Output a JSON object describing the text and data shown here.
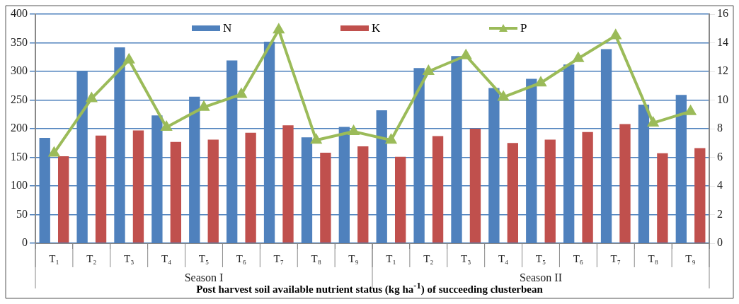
{
  "chart_data": {
    "type": "bar",
    "xlabel": "Post harvest soil available nutrient status (kg ha$^{-1}$) of succeeding clusterbean",
    "categories": [
      "T₁",
      "T₂",
      "T₃",
      "T₄",
      "T₅",
      "T₆",
      "T₇",
      "T₈",
      "T₉",
      "T₁",
      "T₂",
      "T₃",
      "T₄",
      "T₅",
      "T₆",
      "T₇",
      "T₈",
      "T₉"
    ],
    "series": [
      {
        "name": "N",
        "color": "#4f81bd",
        "values": [
          184,
          300,
          342,
          223,
          256,
          319,
          352,
          185,
          203,
          232,
          306,
          327,
          271,
          287,
          312,
          339,
          242,
          259
        ]
      },
      {
        "name": "K",
        "color": "#c0504d",
        "values": [
          152,
          188,
          197,
          177,
          181,
          193,
          206,
          158,
          169,
          151,
          187,
          200,
          175,
          181,
          194,
          208,
          157,
          166
        ]
      },
      {
        "name": "P",
        "type": "line",
        "axis": "y2",
        "color": "#9bbb59",
        "marker": "triangle",
        "values": [
          6.3,
          10.1,
          12.8,
          8.1,
          9.5,
          10.4,
          14.9,
          7.2,
          7.8,
          7.2,
          12.0,
          13.1,
          10.2,
          11.2,
          12.9,
          14.5,
          8.4,
          9.2
        ]
      }
    ],
    "ylim": [
      0,
      400
    ],
    "yticks": [
      0,
      50,
      100,
      150,
      200,
      250,
      300,
      350,
      400
    ],
    "y2lim": [
      0,
      16
    ],
    "y2ticks": [
      0,
      2,
      4,
      6,
      8,
      10,
      12,
      14,
      16
    ],
    "grid": "y",
    "legend": "top",
    "annotations": [
      "Season I",
      "Season II"
    ]
  }
}
